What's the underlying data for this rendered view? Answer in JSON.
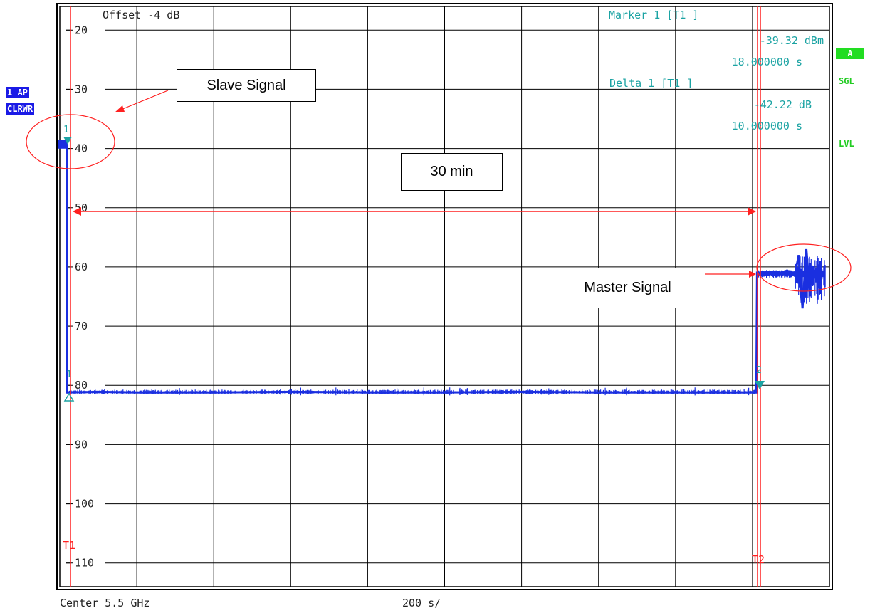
{
  "header": {
    "offset_label": "Offset -4 dB",
    "marker_title": "Marker 1 [T1 ]",
    "marker_level": "-39.32 dBm",
    "marker_time": "18.000000 s",
    "delta_title": "Delta 1 [T1 ]",
    "delta_level": "-42.22 dB",
    "delta_time": "10.000000 s"
  },
  "left_badges": {
    "trace_mode": "1 AP",
    "detector": "CLRWR"
  },
  "right_badges": {
    "a": "A",
    "sgl": "SGL",
    "lvl": "LVL"
  },
  "footer": {
    "center": "Center 5.5 GHz",
    "span": "200 s/"
  },
  "annotations": {
    "slave": "Slave Signal",
    "master": "Master Signal",
    "duration": "30 min"
  },
  "markers": {
    "t1": "T1",
    "t2": "T2",
    "m1": "1",
    "m2": "2",
    "d1": "1"
  },
  "colors": {
    "trace": "#1a2fe0",
    "red": "#ff2020",
    "cyan": "#1ba3a3",
    "badge_blue": "#1a1ae6",
    "badge_green": "#22dd22"
  },
  "chart_data": {
    "type": "line",
    "ylim": [
      -114,
      -16
    ],
    "xlim": [
      0,
      2000
    ],
    "ticks": [
      -20,
      -30,
      -40,
      -50,
      -60,
      -70,
      -80,
      -90,
      -100,
      -110
    ],
    "tick_labels": [
      "20",
      "30",
      "40",
      "50",
      "60",
      "70",
      "80",
      "90",
      "100",
      "110"
    ],
    "grid": true,
    "series": [
      {
        "x": [
          0,
          10,
          18,
          18.1,
          100,
          200,
          400,
          600,
          800,
          1000,
          1200,
          1400,
          1600,
          1800,
          1810,
          1812,
          1830,
          1850,
          1870,
          1890,
          1910,
          1920,
          1930,
          1940,
          1950
        ],
        "y": [
          -39.3,
          -39.3,
          -39.3,
          -81.2,
          -81.1,
          -81.2,
          -81.2,
          -81.1,
          -81.2,
          -81.2,
          -81.1,
          -81.2,
          -81.2,
          -81.2,
          -81.2,
          -61.0,
          -61.3,
          -60.8,
          -61.2,
          -60.6,
          -61.5,
          -58.0,
          -67.0,
          -57.0,
          -65.0
        ]
      }
    ]
  }
}
